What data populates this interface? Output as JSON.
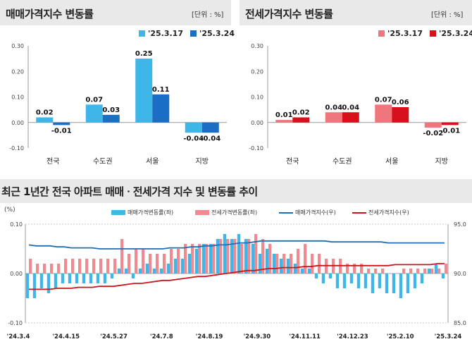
{
  "top_left": {
    "title": "매매가격지수 변동률",
    "unit": "[단위 : %]",
    "legend": [
      "'25.3.17",
      "'25.3.24"
    ],
    "colors": [
      "#3fb6e8",
      "#1a6fc4"
    ]
  },
  "top_right": {
    "title": "전세가격지수 변동률",
    "unit": "[단위 : %]",
    "legend": [
      "'25.3.17",
      "'25.3.24"
    ],
    "colors": [
      "#f0767e",
      "#d8101c"
    ]
  },
  "bottom": {
    "title": "최근 1년간 전국 아파트 매매ㆍ전세가격 지수 및 변동률 추이",
    "left_unit": "(%)",
    "legend": [
      "매매가격변동률(좌)",
      "전세가격변동률(좌)",
      "매매가격지수(우)",
      "전세가격지수(우)"
    ],
    "colors": {
      "sale_rate": "#3fb6e8",
      "jeonse_rate": "#f08a90",
      "sale_index": "#1e6fb5",
      "jeonse_index": "#c8181e"
    }
  },
  "chart_data": [
    {
      "type": "bar",
      "title": "매매가격지수 변동률",
      "categories": [
        "전국",
        "수도권",
        "서울",
        "지방"
      ],
      "series": [
        {
          "name": "'25.3.17",
          "values": [
            0.02,
            0.07,
            0.25,
            -0.04
          ]
        },
        {
          "name": "'25.3.24",
          "values": [
            -0.01,
            0.03,
            0.11,
            -0.04
          ]
        }
      ],
      "ylim": [
        -0.1,
        0.3
      ],
      "yticks": [
        "-0.10",
        "0.00",
        "0.10",
        "0.20",
        "0.30"
      ],
      "data_labels": [
        [
          "0.02",
          "0.07",
          "0.25",
          "-0.04"
        ],
        [
          "-0.01",
          "0.03",
          "0.11",
          "-0.04"
        ]
      ]
    },
    {
      "type": "bar",
      "title": "전세가격지수 변동률",
      "categories": [
        "전국",
        "수도권",
        "서울",
        "지방"
      ],
      "series": [
        {
          "name": "'25.3.17",
          "values": [
            0.01,
            0.04,
            0.07,
            -0.02
          ]
        },
        {
          "name": "'25.3.24",
          "values": [
            0.02,
            0.04,
            0.06,
            -0.01
          ]
        }
      ],
      "ylim": [
        -0.1,
        0.3
      ],
      "yticks": [
        "-0.10",
        "0.00",
        "0.10",
        "0.20",
        "0.30"
      ],
      "data_labels": [
        [
          "0.01",
          "0.04",
          "0.07",
          "-0.02"
        ],
        [
          "0.02",
          "0.04",
          "0.06",
          "-0.01"
        ]
      ]
    },
    {
      "type": "bar",
      "title": "최근 1년간 전국 아파트 매매ㆍ전세가격 지수 및 변동률 추이",
      "x_tick_labels": [
        "'24.3.4",
        "'24.4.15",
        "'24.5.27",
        "'24.7.8",
        "'24.8.19",
        "'24.9.30",
        "'24.11.11",
        "'24.12.23",
        "'25.2.10",
        "'25.3.24"
      ],
      "y_left": {
        "ylim": [
          -0.1,
          0.1
        ],
        "yticks": [
          "-0.10",
          "0.00",
          "0.10"
        ]
      },
      "y_right": {
        "ylim": [
          85.0,
          95.0
        ],
        "yticks": [
          "85.0",
          "90.0",
          "95.0"
        ]
      },
      "series": [
        {
          "name": "매매가격변동률(좌)",
          "type": "bar",
          "values": [
            -0.05,
            -0.05,
            -0.03,
            -0.04,
            -0.03,
            -0.02,
            -0.02,
            -0.02,
            -0.02,
            -0.02,
            -0.02,
            -0.02,
            -0.01,
            0.01,
            0.01,
            -0.01,
            0.01,
            0.02,
            0.01,
            0.01,
            0.02,
            0.03,
            0.03,
            0.04,
            0.05,
            0.06,
            0.06,
            0.07,
            0.08,
            0.07,
            0.08,
            0.07,
            0.06,
            0.04,
            0.05,
            0.04,
            0.03,
            0.03,
            0.02,
            0.01,
            0.01,
            -0.01,
            -0.02,
            -0.01,
            -0.03,
            -0.03,
            -0.02,
            -0.03,
            -0.03,
            -0.04,
            -0.03,
            -0.04,
            -0.04,
            -0.05,
            -0.04,
            -0.03,
            -0.02,
            0.01,
            0.02,
            -0.01
          ]
        },
        {
          "name": "전세가격변동률(좌)",
          "type": "bar",
          "values": [
            0.03,
            0.02,
            0.02,
            0.02,
            0.02,
            0.03,
            0.03,
            0.03,
            0.03,
            0.03,
            0.03,
            0.03,
            0.03,
            0.07,
            0.04,
            0.05,
            0.05,
            0.04,
            0.04,
            0.04,
            0.05,
            0.05,
            0.06,
            0.06,
            0.06,
            0.06,
            0.06,
            0.07,
            0.07,
            0.07,
            0.06,
            0.07,
            0.08,
            0.07,
            0.06,
            0.04,
            0.04,
            0.04,
            0.05,
            0.06,
            0.04,
            0.04,
            0.03,
            0.03,
            0.03,
            0.02,
            0.02,
            0.02,
            0.01,
            0.01,
            0.01,
            0.0,
            0.0,
            0.01,
            0.01,
            0.01,
            0.01,
            0.01,
            0.01,
            0.02
          ]
        },
        {
          "name": "매매가격지수(우)",
          "type": "line",
          "values": [
            92.9,
            92.8,
            92.8,
            92.8,
            92.7,
            92.7,
            92.6,
            92.6,
            92.6,
            92.6,
            92.5,
            92.5,
            92.5,
            92.5,
            92.5,
            92.5,
            92.5,
            92.5,
            92.5,
            92.5,
            92.6,
            92.6,
            92.6,
            92.7,
            92.7,
            92.8,
            92.8,
            92.9,
            92.9,
            93.0,
            93.1,
            93.1,
            93.2,
            93.3,
            93.3,
            93.3,
            93.3,
            93.3,
            93.3,
            93.3,
            93.3,
            93.3,
            93.3,
            93.2,
            93.2,
            93.2,
            93.2,
            93.2,
            93.2,
            93.2,
            93.2,
            93.1,
            93.1,
            93.1,
            93.1,
            93.1,
            93.1,
            93.1,
            93.1,
            93.1
          ]
        },
        {
          "name": "전세가격지수(우)",
          "type": "line",
          "values": [
            88.4,
            88.4,
            88.4,
            88.4,
            88.5,
            88.5,
            88.5,
            88.6,
            88.6,
            88.6,
            88.7,
            88.7,
            88.7,
            88.8,
            88.9,
            89.0,
            89.0,
            89.1,
            89.2,
            89.3,
            89.3,
            89.4,
            89.5,
            89.6,
            89.7,
            89.7,
            89.8,
            89.9,
            90.0,
            90.1,
            90.2,
            90.3,
            90.3,
            90.4,
            90.5,
            90.5,
            90.6,
            90.6,
            90.6,
            90.7,
            90.7,
            90.8,
            90.8,
            90.8,
            90.8,
            90.8,
            90.8,
            90.8,
            90.8,
            90.8,
            90.8,
            90.8,
            90.9,
            90.9,
            90.9,
            90.9,
            90.9,
            90.9,
            91.0,
            91.0
          ]
        }
      ]
    }
  ]
}
